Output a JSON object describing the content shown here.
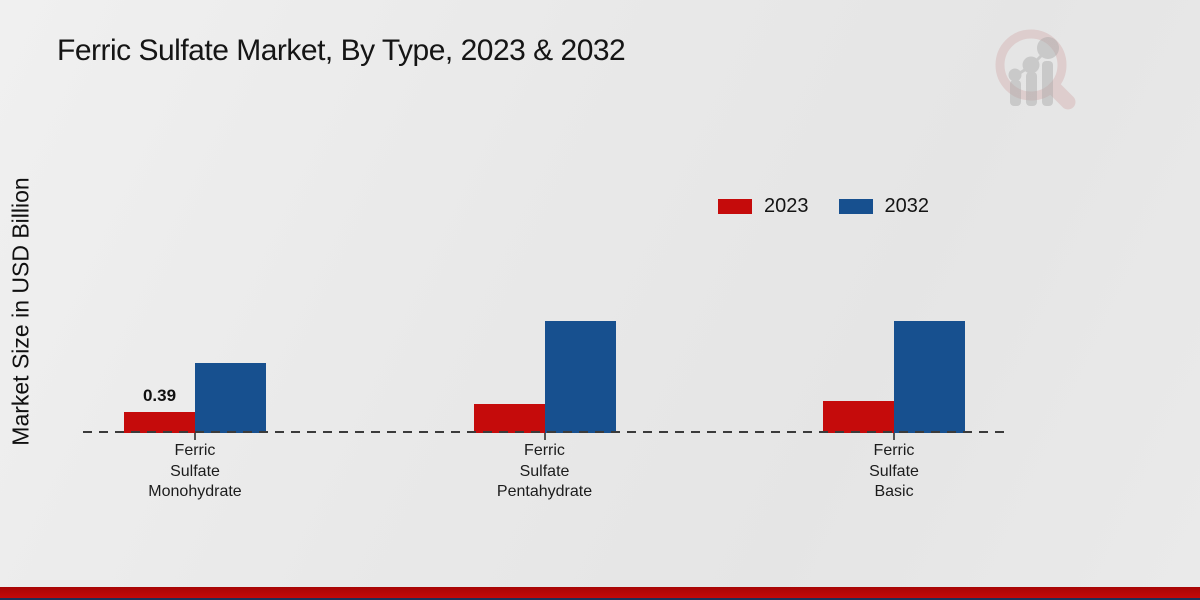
{
  "header": {
    "title": "Ferric Sulfate Market, By Type, 2023 & 2032"
  },
  "chart_data": {
    "type": "bar",
    "title": "Ferric Sulfate Market, By Type, 2023 & 2032",
    "xlabel": "",
    "ylabel": "Market Size in USD Billion",
    "categories": [
      "Ferric Sulfate Monohydrate",
      "Ferric Sulfate Pentahydrate",
      "Ferric Sulfate Basic"
    ],
    "series": [
      {
        "name": "2023",
        "color": "#c50b0b",
        "values": [
          0.39,
          0.54,
          0.58
        ]
      },
      {
        "name": "2032",
        "color": "#17508f",
        "values": [
          1.29,
          2.05,
          2.06
        ]
      }
    ],
    "annotations": [
      {
        "category": "Ferric Sulfate Monohydrate",
        "series": "2023",
        "label": "0.39"
      }
    ],
    "legend_position": "top-right",
    "legend_entries": [
      "2023",
      "2032"
    ],
    "grid": false,
    "baseline_style": "dashed",
    "ylim": [
      0,
      2.3
    ]
  },
  "colors": {
    "series_2023": "#c50b0b",
    "series_2032": "#17508f",
    "footer_stripe": "#c50808",
    "footer_edge": "#1d3057",
    "background": "#e9e9e9"
  },
  "logo": {
    "name": "market-research-magnifier-bar-chart-watermark",
    "ring_color": "#dfc3c3",
    "bar_color": "#c4c4c4"
  }
}
